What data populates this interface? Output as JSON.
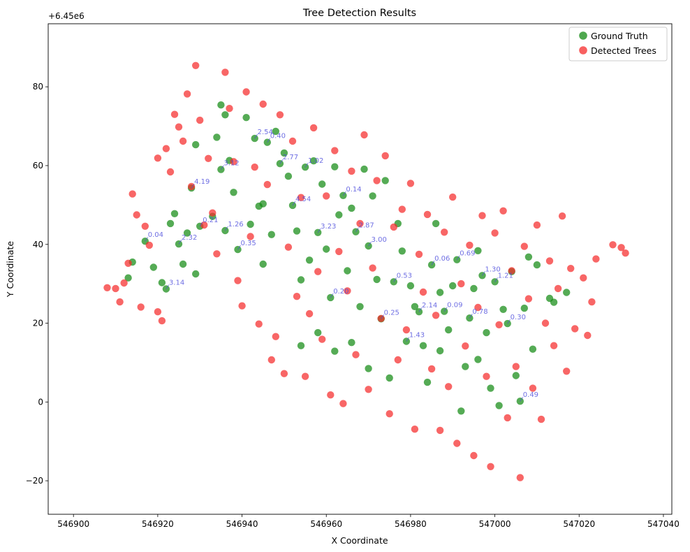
{
  "chart_data": {
    "type": "scatter",
    "title": "Tree Detection Results",
    "xlabel": "X Coordinate",
    "ylabel": "Y Coordinate",
    "xlim": [
      546894,
      547042
    ],
    "ylim": [
      -28.5,
      96
    ],
    "x_offset_label": "",
    "y_offset_label": "+6.45e6",
    "xticks": [
      546900,
      546920,
      546940,
      546960,
      546980,
      547000,
      547020,
      547040
    ],
    "yticks": [
      -20,
      0,
      20,
      40,
      60,
      80
    ],
    "grid": false,
    "legend_position": "top-right",
    "colors": {
      "ground_truth": "#138a13",
      "detected": "#f52b2b",
      "match_line": "#4b4bdc"
    },
    "series": [
      {
        "name": "Ground Truth",
        "points": [
          [
            546914,
            35.5
          ],
          [
            546913,
            31.5
          ],
          [
            546917,
            40.8
          ],
          [
            546919,
            34.2
          ],
          [
            546921,
            30.3
          ],
          [
            546922,
            28.7
          ],
          [
            546923,
            45.3
          ],
          [
            546924,
            47.8
          ],
          [
            546925,
            40.1
          ],
          [
            546926,
            35.0
          ],
          [
            546927,
            42.9
          ],
          [
            546928,
            54.3
          ],
          [
            546929,
            65.3
          ],
          [
            546929,
            32.5
          ],
          [
            546930,
            44.6
          ],
          [
            546933,
            47.1
          ],
          [
            546934,
            67.2
          ],
          [
            546935,
            59.0
          ],
          [
            546935,
            75.4
          ],
          [
            546936,
            72.9
          ],
          [
            546936,
            43.5
          ],
          [
            546937,
            61.3
          ],
          [
            546938,
            53.2
          ],
          [
            546939,
            38.7
          ],
          [
            546941,
            72.2
          ],
          [
            546942,
            45.1
          ],
          [
            546943,
            66.9
          ],
          [
            546944,
            49.7
          ],
          [
            546945,
            35.0
          ],
          [
            546946,
            65.9
          ],
          [
            546947,
            42.5
          ],
          [
            546948,
            68.7
          ],
          [
            546949,
            60.5
          ],
          [
            546950,
            63.2
          ],
          [
            546951,
            57.3
          ],
          [
            546952,
            49.9
          ],
          [
            546953,
            43.4
          ],
          [
            546954,
            31.0
          ],
          [
            546955,
            59.6
          ],
          [
            546956,
            36.0
          ],
          [
            546957,
            61.2
          ],
          [
            546958,
            43.0
          ],
          [
            546959,
            55.3
          ],
          [
            546960,
            38.8
          ],
          [
            546961,
            26.5
          ],
          [
            546962,
            59.7
          ],
          [
            546963,
            47.5
          ],
          [
            546964,
            52.4
          ],
          [
            546965,
            33.3
          ],
          [
            546966,
            49.2
          ],
          [
            546967,
            43.2
          ],
          [
            546968,
            24.2
          ],
          [
            546969,
            59.1
          ],
          [
            546970,
            39.6
          ],
          [
            546971,
            52.3
          ],
          [
            546972,
            31.1
          ],
          [
            546973,
            21.1
          ],
          [
            546974,
            56.2
          ],
          [
            546975,
            6.1
          ],
          [
            546976,
            30.5
          ],
          [
            546977,
            45.3
          ],
          [
            546978,
            38.3
          ],
          [
            546979,
            15.4
          ],
          [
            546980,
            29.5
          ],
          [
            546981,
            24.2
          ],
          [
            546982,
            22.9
          ],
          [
            546983,
            14.3
          ],
          [
            546984,
            5.0
          ],
          [
            546985,
            34.8
          ],
          [
            546986,
            45.3
          ],
          [
            546987,
            13.0
          ],
          [
            546988,
            23.0
          ],
          [
            546989,
            18.3
          ],
          [
            546990,
            29.5
          ],
          [
            546991,
            36.1
          ],
          [
            546992,
            -2.3
          ],
          [
            546993,
            9.0
          ],
          [
            546994,
            21.3
          ],
          [
            546995,
            28.8
          ],
          [
            546996,
            10.8
          ],
          [
            546997,
            32.1
          ],
          [
            546998,
            17.6
          ],
          [
            546999,
            3.5
          ],
          [
            547000,
            30.5
          ],
          [
            547001,
            -0.9
          ],
          [
            547002,
            23.5
          ],
          [
            547003,
            19.9
          ],
          [
            547004,
            33.1
          ],
          [
            547005,
            6.7
          ],
          [
            547006,
            0.2
          ],
          [
            547007,
            23.8
          ],
          [
            547008,
            36.8
          ],
          [
            547009,
            13.4
          ],
          [
            547010,
            34.8
          ],
          [
            547013,
            26.3
          ],
          [
            547014,
            25.3
          ],
          [
            547017,
            27.8
          ],
          [
            546945,
            50.3
          ],
          [
            546958,
            17.6
          ],
          [
            546966,
            15.1
          ],
          [
            546970,
            8.5
          ],
          [
            546962,
            12.9
          ],
          [
            546954,
            14.3
          ],
          [
            546996,
            38.4
          ],
          [
            546987,
            27.8
          ]
        ]
      },
      {
        "name": "Detected Trees",
        "points": [
          [
            546908,
            29.0
          ],
          [
            546910,
            28.8
          ],
          [
            546911,
            25.4
          ],
          [
            546912,
            30.2
          ],
          [
            546913,
            35.2
          ],
          [
            546914,
            52.8
          ],
          [
            546915,
            47.5
          ],
          [
            546916,
            24.1
          ],
          [
            546917,
            44.6
          ],
          [
            546918,
            39.8
          ],
          [
            546920,
            61.9
          ],
          [
            546920,
            22.9
          ],
          [
            546921,
            20.6
          ],
          [
            546922,
            64.3
          ],
          [
            546923,
            58.4
          ],
          [
            546924,
            73.0
          ],
          [
            546925,
            69.8
          ],
          [
            546926,
            66.2
          ],
          [
            546927,
            78.2
          ],
          [
            546928,
            54.7
          ],
          [
            546929,
            85.4
          ],
          [
            546930,
            71.5
          ],
          [
            546931,
            44.9
          ],
          [
            546932,
            61.8
          ],
          [
            546933,
            48.0
          ],
          [
            546934,
            37.6
          ],
          [
            546936,
            83.7
          ],
          [
            546937,
            74.5
          ],
          [
            546938,
            61.0
          ],
          [
            546939,
            30.8
          ],
          [
            546940,
            24.4
          ],
          [
            546941,
            78.7
          ],
          [
            546942,
            42.0
          ],
          [
            546943,
            59.6
          ],
          [
            546944,
            19.8
          ],
          [
            546945,
            75.6
          ],
          [
            546946,
            55.2
          ],
          [
            546947,
            10.7
          ],
          [
            546948,
            16.6
          ],
          [
            546949,
            72.9
          ],
          [
            546950,
            7.2
          ],
          [
            546951,
            39.3
          ],
          [
            546952,
            66.2
          ],
          [
            546953,
            26.8
          ],
          [
            546954,
            51.9
          ],
          [
            546955,
            6.5
          ],
          [
            546956,
            22.4
          ],
          [
            546957,
            69.6
          ],
          [
            546958,
            33.1
          ],
          [
            546959,
            15.9
          ],
          [
            546960,
            52.3
          ],
          [
            546961,
            1.8
          ],
          [
            546962,
            63.8
          ],
          [
            546963,
            38.2
          ],
          [
            546964,
            -0.4
          ],
          [
            546965,
            28.2
          ],
          [
            546966,
            58.6
          ],
          [
            546967,
            12.0
          ],
          [
            546968,
            45.3
          ],
          [
            546969,
            67.8
          ],
          [
            546970,
            3.2
          ],
          [
            546971,
            34.0
          ],
          [
            546972,
            56.2
          ],
          [
            546973,
            21.2
          ],
          [
            546974,
            62.5
          ],
          [
            546975,
            -3.0
          ],
          [
            546976,
            44.4
          ],
          [
            546977,
            10.7
          ],
          [
            546978,
            48.9
          ],
          [
            546979,
            18.3
          ],
          [
            546980,
            55.5
          ],
          [
            546981,
            -6.9
          ],
          [
            546982,
            37.5
          ],
          [
            546983,
            27.9
          ],
          [
            546984,
            47.6
          ],
          [
            546985,
            8.4
          ],
          [
            546986,
            22.0
          ],
          [
            546987,
            -7.2
          ],
          [
            546988,
            43.1
          ],
          [
            546989,
            3.9
          ],
          [
            546990,
            52.0
          ],
          [
            546991,
            -10.5
          ],
          [
            546992,
            30.0
          ],
          [
            546993,
            14.2
          ],
          [
            546994,
            39.8
          ],
          [
            546995,
            -13.6
          ],
          [
            546996,
            24.0
          ],
          [
            546997,
            47.3
          ],
          [
            546998,
            6.5
          ],
          [
            546999,
            -16.4
          ],
          [
            547000,
            42.9
          ],
          [
            547001,
            19.6
          ],
          [
            547002,
            48.5
          ],
          [
            547003,
            -4.0
          ],
          [
            547004,
            33.3
          ],
          [
            547005,
            9.0
          ],
          [
            547006,
            -19.2
          ],
          [
            547007,
            39.5
          ],
          [
            547008,
            26.2
          ],
          [
            547009,
            3.5
          ],
          [
            547010,
            44.9
          ],
          [
            547011,
            -4.4
          ],
          [
            547012,
            20.0
          ],
          [
            547013,
            35.8
          ],
          [
            547014,
            14.3
          ],
          [
            547015,
            28.8
          ],
          [
            547016,
            47.2
          ],
          [
            547017,
            7.8
          ],
          [
            547018,
            33.9
          ],
          [
            547019,
            18.6
          ],
          [
            547021,
            31.5
          ],
          [
            547022,
            16.9
          ],
          [
            547023,
            25.4
          ],
          [
            547024,
            36.3
          ],
          [
            547028,
            39.9
          ],
          [
            547030,
            39.2
          ],
          [
            547031,
            37.8
          ]
        ]
      }
    ],
    "labels_sample": [
      "0.04",
      "3.14",
      "2.32",
      "4.19",
      "0.21",
      "3.12",
      "1.26",
      "0.35",
      "2.54",
      "0.40",
      "2.77",
      "4.54",
      "1.02",
      "3.23",
      "0.20",
      "0.14",
      "2.87",
      "3.00",
      "0.25",
      "0.53",
      "1.43",
      "2.14",
      "0.06",
      "0.09",
      "0.69",
      "0.78",
      "1.30",
      "1.21",
      "0.30",
      "0.49"
    ]
  }
}
